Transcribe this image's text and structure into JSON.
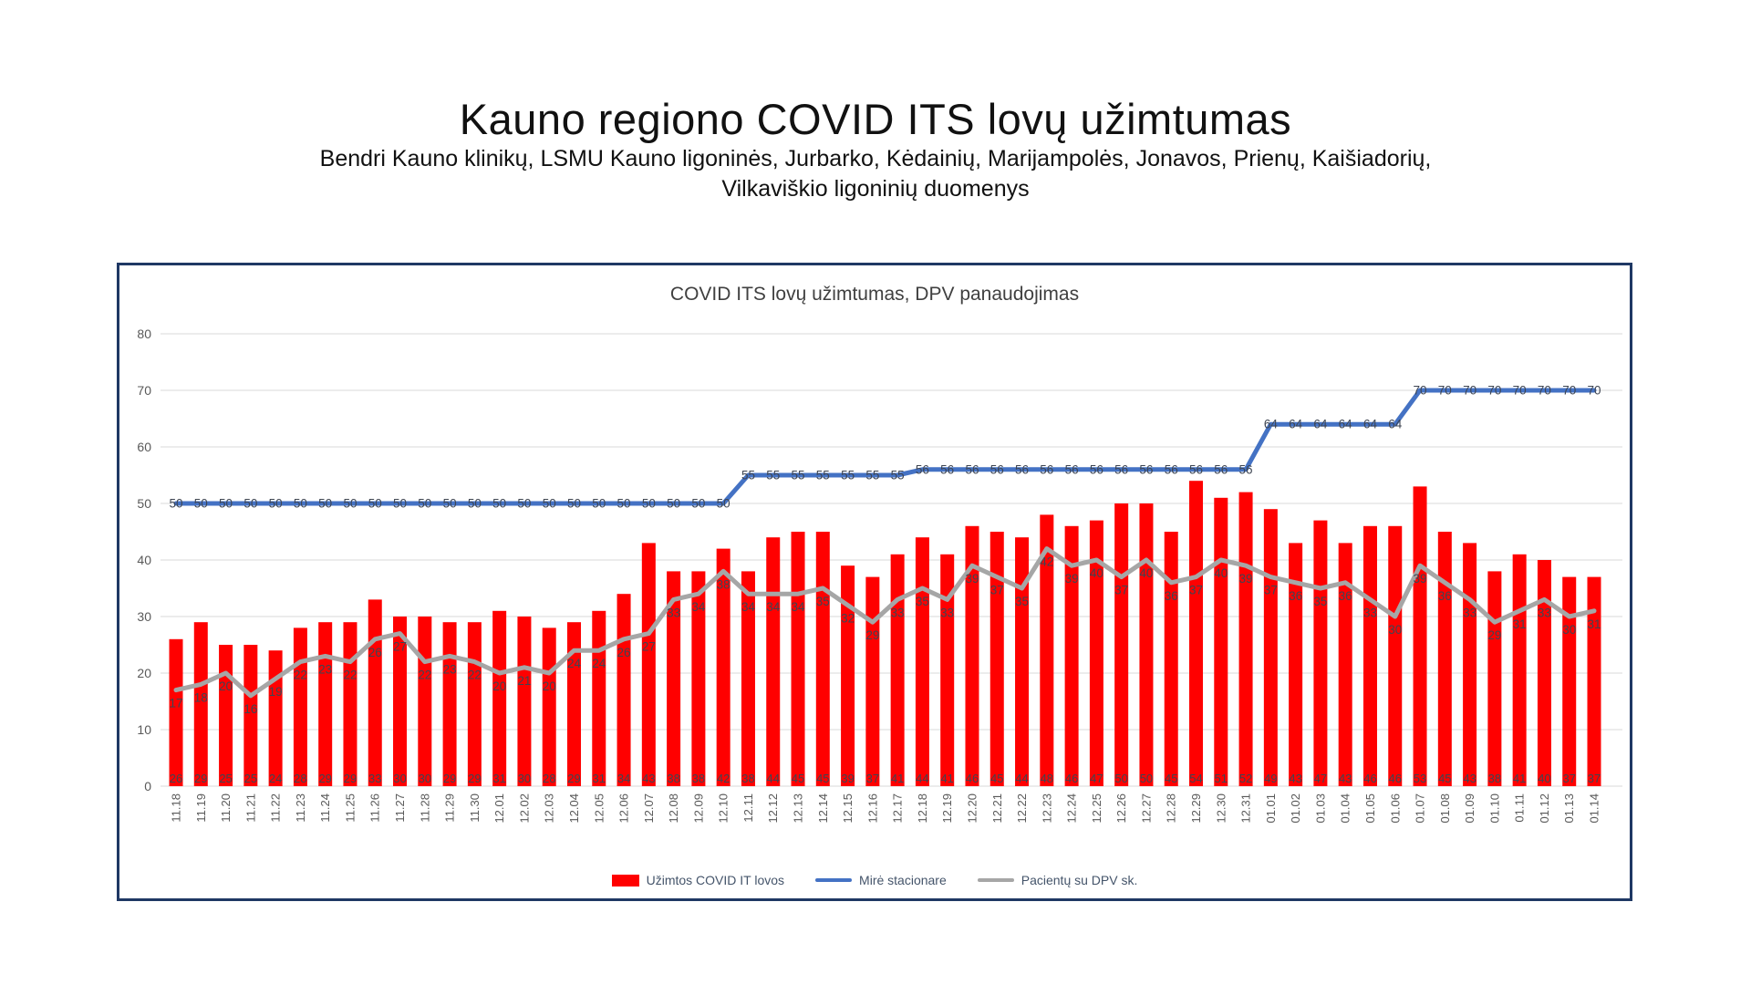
{
  "page": {
    "title": "Kauno regiono COVID ITS lovų užimtumas",
    "subtitle": "Bendri Kauno klinikų, LSMU Kauno ligoninės, Jurbarko, Kėdainių, Marijampolės, Jonavos, Prienų, Kaišiadorių, Vilkaviškio ligoninių duomenys"
  },
  "chart_data": {
    "type": "bar",
    "title": "COVID ITS lovų užimtumas, DPV panaudojimas",
    "categories": [
      "11.18",
      "11.19",
      "11.20",
      "11.21",
      "11.22",
      "11.23",
      "11.24",
      "11.25",
      "11.26",
      "11.27",
      "11.28",
      "11.29",
      "11.30",
      "12.01",
      "12.02",
      "12.03",
      "12.04",
      "12.05",
      "12.06",
      "12.07",
      "12.08",
      "12.09",
      "12.10",
      "12.11",
      "12.12",
      "12.13",
      "12.14",
      "12.15",
      "12.16",
      "12.17",
      "12.18",
      "12.19",
      "12.20",
      "12.21",
      "12.22",
      "12.23",
      "12.24",
      "12.25",
      "12.26",
      "12.27",
      "12.28",
      "12.29",
      "12.30",
      "12.31",
      "01.01",
      "01.02",
      "01.03",
      "01.04",
      "01.05",
      "01.06",
      "01.07",
      "01.08",
      "01.09",
      "01.10",
      "01.11",
      "01.12",
      "01.13",
      "01.14"
    ],
    "series": [
      {
        "name": "Užimtos COVID IT lovos",
        "type": "bar",
        "color": "#FF0000",
        "values": [
          26,
          29,
          25,
          25,
          24,
          28,
          29,
          29,
          33,
          30,
          30,
          29,
          29,
          31,
          30,
          28,
          29,
          31,
          34,
          43,
          38,
          38,
          42,
          38,
          44,
          45,
          45,
          39,
          37,
          41,
          44,
          41,
          46,
          45,
          44,
          48,
          46,
          47,
          50,
          50,
          45,
          54,
          51,
          52,
          49,
          43,
          47,
          43,
          46,
          46,
          53,
          45,
          43,
          38,
          41,
          40,
          37,
          37
        ]
      },
      {
        "name": "Mirė stacionare",
        "type": "line",
        "color": "#4472C4",
        "values": [
          50,
          50,
          50,
          50,
          50,
          50,
          50,
          50,
          50,
          50,
          50,
          50,
          50,
          50,
          50,
          50,
          50,
          50,
          50,
          50,
          50,
          50,
          50,
          55,
          55,
          55,
          55,
          55,
          55,
          55,
          56,
          56,
          56,
          56,
          56,
          56,
          56,
          56,
          56,
          56,
          56,
          56,
          56,
          56,
          64,
          64,
          64,
          64,
          64,
          64,
          70,
          70,
          70,
          70,
          70,
          70,
          70,
          70
        ]
      },
      {
        "name": "Pacientų su DPV sk.",
        "type": "line",
        "color": "#A6A6A6",
        "values": [
          17,
          18,
          20,
          16,
          19,
          22,
          23,
          22,
          26,
          27,
          22,
          23,
          22,
          20,
          21,
          20,
          24,
          24,
          26,
          27,
          33,
          34,
          38,
          34,
          34,
          34,
          35,
          32,
          29,
          33,
          35,
          33,
          39,
          37,
          35,
          42,
          39,
          40,
          37,
          40,
          36,
          37,
          40,
          39,
          37,
          36,
          35,
          36,
          33,
          30,
          39,
          36,
          33,
          29,
          31,
          33,
          30,
          31
        ]
      }
    ],
    "ylim": [
      0,
      80
    ],
    "yticks": [
      0,
      10,
      20,
      30,
      40,
      50,
      60,
      70,
      80
    ],
    "grid": true,
    "data_labels": true,
    "legend_position": "bottom"
  },
  "style": {
    "frame_border_color": "#1F3864",
    "grid_color": "#D9D9D9",
    "axis_text_color": "#595959",
    "data_label_color": "#3E4552",
    "legend_text_color": "#44546A",
    "background": "#FFFFFF"
  }
}
